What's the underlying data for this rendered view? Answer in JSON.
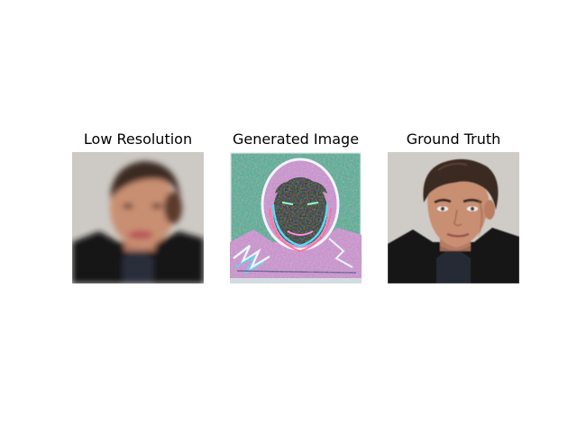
{
  "figure": {
    "panels": [
      {
        "title": "Low Resolution",
        "image": "blurry-low-resolution-face-photo"
      },
      {
        "title": "Generated Image",
        "image": "noisy-edge-artifact-generated-face"
      },
      {
        "title": "Ground Truth",
        "image": "sharp-face-photo"
      }
    ]
  },
  "colors": {
    "background": "#ffffff",
    "photo_background": "#cfcbc6",
    "skin": "#c98f72",
    "hair": "#3a2a22",
    "jacket": "#161616",
    "generated_bg": "#4fa58e",
    "generated_fill": "#c48bc8",
    "generated_dark": "#0d1a12"
  }
}
